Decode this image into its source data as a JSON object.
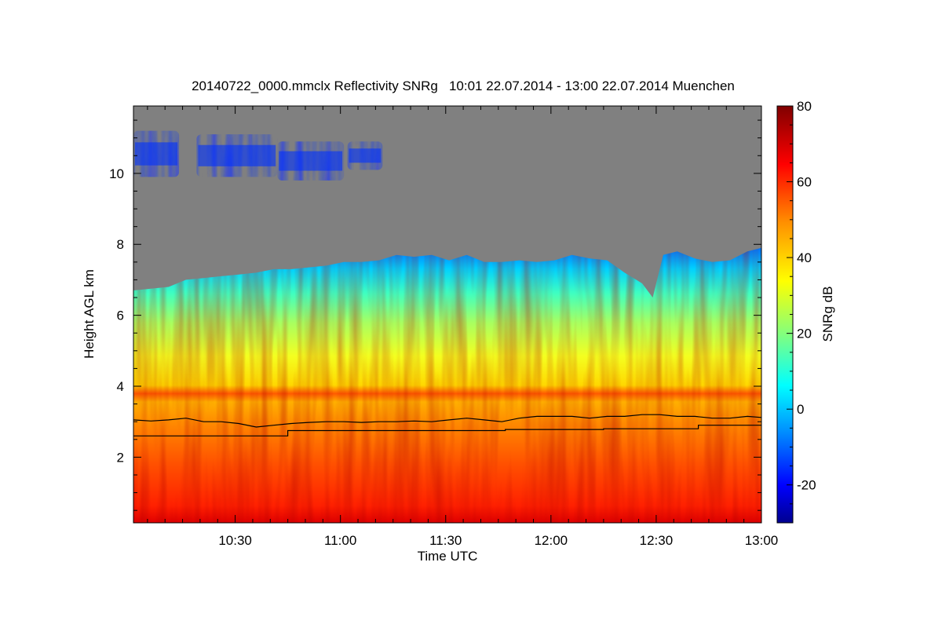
{
  "chart_data": {
    "type": "heatmap",
    "title": "20140722_0000.mmclx Reflectivity SNRg   10:01 22.07.2014 - 13:00 22.07.2014 Muenchen",
    "xlabel": "Time UTC",
    "ylabel": "Height AGL km",
    "colorbar_label": "SNRg dB",
    "x_range_minutes_utc": [
      601,
      780
    ],
    "x_ticks": [
      {
        "minutes": 630,
        "label": "10:30"
      },
      {
        "minutes": 660,
        "label": "11:00"
      },
      {
        "minutes": 690,
        "label": "11:30"
      },
      {
        "minutes": 720,
        "label": "12:00"
      },
      {
        "minutes": 750,
        "label": "12:30"
      },
      {
        "minutes": 780,
        "label": "13:00"
      }
    ],
    "ylim_km": [
      0.15,
      11.9
    ],
    "y_ticks": [
      {
        "value": 2,
        "label": "2"
      },
      {
        "value": 4,
        "label": "4"
      },
      {
        "value": 6,
        "label": "6"
      },
      {
        "value": 8,
        "label": "8"
      },
      {
        "value": 10,
        "label": "10"
      }
    ],
    "colorbar_range_db": [
      -30,
      80
    ],
    "colorbar_ticks": [
      {
        "value": -20,
        "label": "-20"
      },
      {
        "value": 0,
        "label": "0"
      },
      {
        "value": 20,
        "label": "20"
      },
      {
        "value": 40,
        "label": "40"
      },
      {
        "value": 60,
        "label": "60"
      },
      {
        "value": 80,
        "label": "80"
      }
    ],
    "no_signal_color": "#808080",
    "colormap": [
      "#00008f",
      "#0000ff",
      "#00a0ff",
      "#00ffff",
      "#80ff80",
      "#ffff00",
      "#ff8000",
      "#ff0000",
      "#800000"
    ],
    "echo_top_km": [
      [
        601,
        6.7
      ],
      [
        606,
        6.75
      ],
      [
        611,
        6.8
      ],
      [
        616,
        7.0
      ],
      [
        621,
        7.05
      ],
      [
        626,
        7.1
      ],
      [
        631,
        7.15
      ],
      [
        636,
        7.2
      ],
      [
        641,
        7.3
      ],
      [
        646,
        7.3
      ],
      [
        651,
        7.35
      ],
      [
        656,
        7.4
      ],
      [
        661,
        7.5
      ],
      [
        666,
        7.5
      ],
      [
        671,
        7.55
      ],
      [
        676,
        7.7
      ],
      [
        681,
        7.65
      ],
      [
        686,
        7.7
      ],
      [
        691,
        7.55
      ],
      [
        696,
        7.7
      ],
      [
        701,
        7.5
      ],
      [
        706,
        7.5
      ],
      [
        711,
        7.55
      ],
      [
        716,
        7.5
      ],
      [
        721,
        7.55
      ],
      [
        726,
        7.7
      ],
      [
        731,
        7.6
      ],
      [
        736,
        7.55
      ],
      [
        741,
        7.2
      ],
      [
        746,
        6.9
      ],
      [
        749,
        6.5
      ],
      [
        752,
        7.7
      ],
      [
        756,
        7.8
      ],
      [
        761,
        7.6
      ],
      [
        766,
        7.5
      ],
      [
        771,
        7.55
      ],
      [
        776,
        7.8
      ],
      [
        780,
        7.9
      ]
    ],
    "melting_layer_line_km": [
      [
        601,
        3.05
      ],
      [
        606,
        3.02
      ],
      [
        611,
        3.05
      ],
      [
        616,
        3.1
      ],
      [
        621,
        3.0
      ],
      [
        626,
        3.0
      ],
      [
        631,
        2.95
      ],
      [
        636,
        2.85
      ],
      [
        641,
        2.9
      ],
      [
        646,
        2.95
      ],
      [
        651,
        2.98
      ],
      [
        656,
        3.0
      ],
      [
        661,
        3.0
      ],
      [
        666,
        2.98
      ],
      [
        671,
        3.0
      ],
      [
        676,
        3.0
      ],
      [
        681,
        3.02
      ],
      [
        686,
        3.0
      ],
      [
        691,
        3.05
      ],
      [
        696,
        3.1
      ],
      [
        701,
        3.05
      ],
      [
        706,
        3.0
      ],
      [
        711,
        3.1
      ],
      [
        716,
        3.15
      ],
      [
        721,
        3.15
      ],
      [
        726,
        3.15
      ],
      [
        731,
        3.1
      ],
      [
        736,
        3.15
      ],
      [
        741,
        3.15
      ],
      [
        746,
        3.2
      ],
      [
        751,
        3.2
      ],
      [
        756,
        3.15
      ],
      [
        761,
        3.15
      ],
      [
        766,
        3.1
      ],
      [
        771,
        3.1
      ],
      [
        776,
        3.15
      ],
      [
        780,
        3.12
      ]
    ],
    "lower_step_line_km": [
      [
        601,
        2.6
      ],
      [
        645,
        2.6
      ],
      [
        645,
        2.75
      ],
      [
        707,
        2.75
      ],
      [
        707,
        2.78
      ],
      [
        735,
        2.78
      ],
      [
        735,
        2.8
      ],
      [
        762,
        2.8
      ],
      [
        762,
        2.9
      ],
      [
        780,
        2.9
      ]
    ],
    "high_cirrus_patches": [
      {
        "t0": 601,
        "t1": 614,
        "h0": 9.9,
        "h1": 11.2
      },
      {
        "t0": 619,
        "t1": 642,
        "h0": 9.9,
        "h1": 11.1
      },
      {
        "t0": 642,
        "t1": 661,
        "h0": 9.8,
        "h1": 10.9
      },
      {
        "t0": 662,
        "t1": 672,
        "h0": 10.1,
        "h1": 10.9
      }
    ]
  }
}
